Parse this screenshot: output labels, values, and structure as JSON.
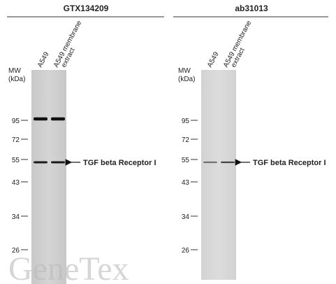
{
  "panels": [
    {
      "title": "GTX134209",
      "lanes": [
        {
          "lines": [
            "A549"
          ]
        },
        {
          "lines": [
            "A549 membrane",
            "extract"
          ]
        }
      ],
      "mw_label": [
        "MW",
        "(kDa)"
      ],
      "markers": [
        95,
        72,
        55,
        43,
        34,
        26
      ],
      "annotation": "TGF beta Receptor I"
    },
    {
      "title": "ab31013",
      "lanes": [
        {
          "lines": [
            "A549"
          ]
        },
        {
          "lines": [
            "A549 membrane",
            "extract"
          ]
        }
      ],
      "mw_label": [
        "MW",
        "(kDa)"
      ],
      "markers": [
        95,
        72,
        55,
        43,
        34,
        26
      ],
      "annotation": "TGF beta Receptor I"
    }
  ],
  "watermark": "GeneTex"
}
